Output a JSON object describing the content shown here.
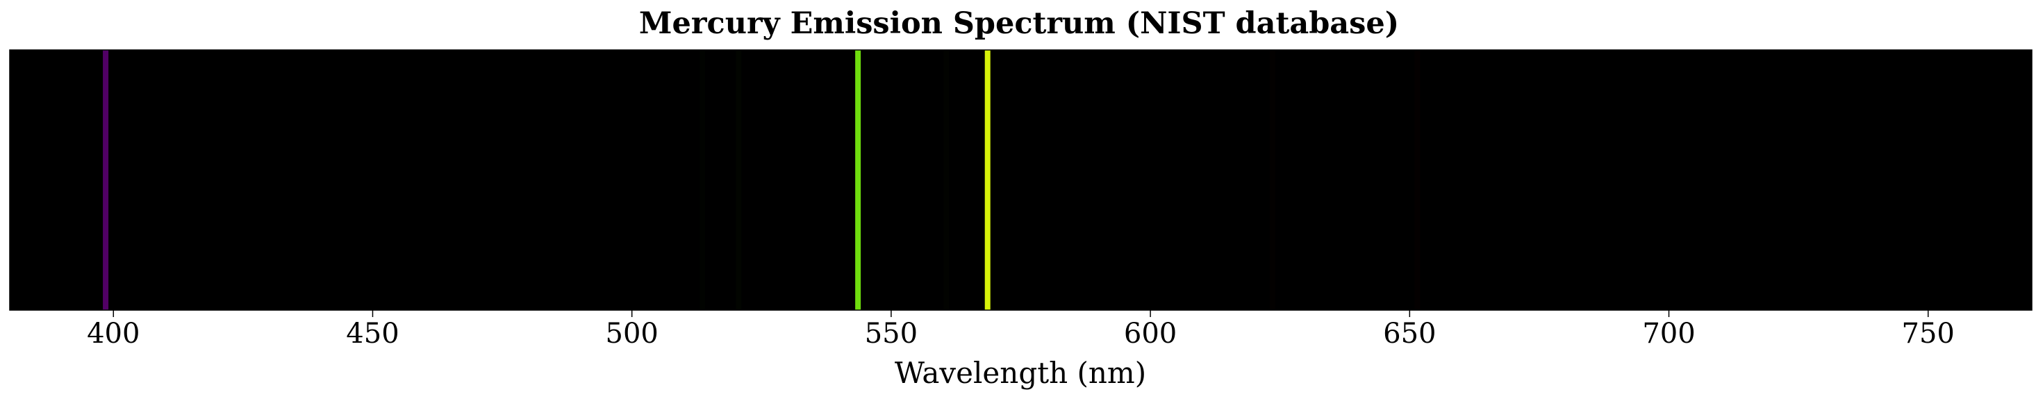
{
  "chart_data": {
    "type": "bar",
    "title": "Mercury Emission Spectrum (NIST database)",
    "xlabel": "Wavelength (nm)",
    "ylabel": "",
    "xlim": [
      380,
      770
    ],
    "xticks": [
      400,
      450,
      500,
      550,
      600,
      650,
      700,
      750
    ],
    "grid": false,
    "legend": "none",
    "background_color": "#000000",
    "lines": [
      {
        "wavelength": 398.5,
        "color": "#5a0070",
        "intensity": 0.9
      },
      {
        "wavelength": 513.6,
        "color": "#061400",
        "intensity": 0.08
      },
      {
        "wavelength": 520.6,
        "color": "#0b2400",
        "intensity": 0.12
      },
      {
        "wavelength": 543.6,
        "color": "#6fdd0e",
        "intensity": 1.0
      },
      {
        "wavelength": 560.6,
        "color": "#0c1700",
        "intensity": 0.1
      },
      {
        "wavelength": 568.6,
        "color": "#d7f20a",
        "intensity": 1.0
      },
      {
        "wavelength": 623.5,
        "color": "#140a00",
        "intensity": 0.06
      },
      {
        "wavelength": 651.5,
        "color": "#1c0000",
        "intensity": 0.08
      }
    ]
  }
}
